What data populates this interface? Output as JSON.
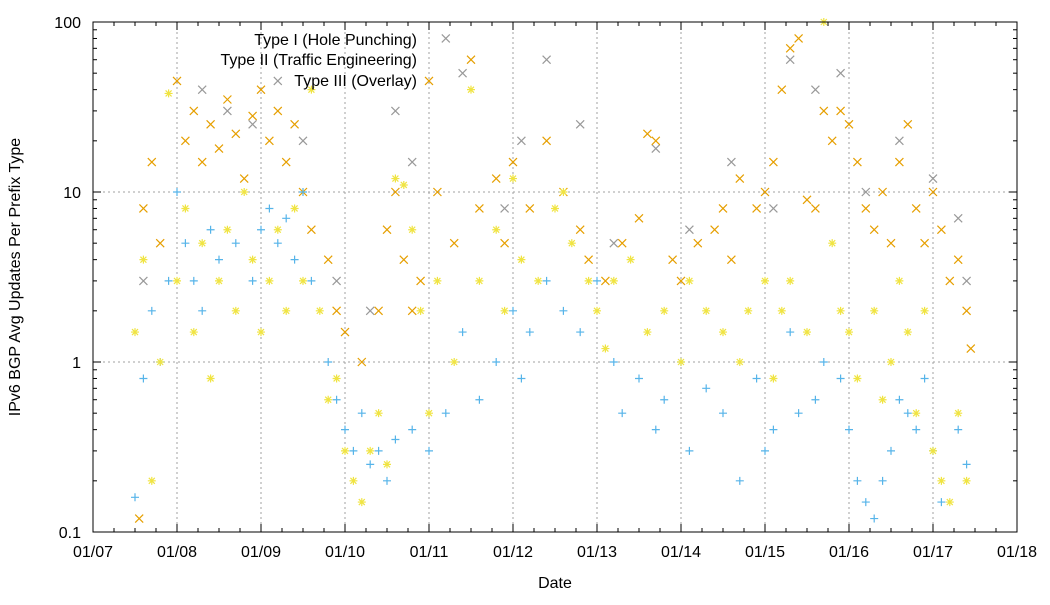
{
  "chart_data": {
    "type": "scatter",
    "title": "",
    "xlabel": "Date",
    "ylabel": "IPv6 BGP Avg Updates Per Prefix Type",
    "x_unit": "day of January (01/DD)",
    "xlim": [
      7,
      18
    ],
    "ylim": [
      0.1,
      100
    ],
    "yscale": "log",
    "grid": true,
    "legend_placement": "top-left",
    "x_tick_labels": [
      "01/07",
      "01/08",
      "01/09",
      "01/10",
      "01/11",
      "01/12",
      "01/13",
      "01/14",
      "01/15",
      "01/16",
      "01/17",
      "01/18"
    ],
    "y_tick_labels": [
      "0.1",
      "1",
      "10",
      "100"
    ],
    "y_ticks": [
      0.1,
      1,
      10,
      100
    ],
    "legend": [
      "Type I (Hole Punching)",
      "Type II (Traffic Engineering)",
      "Type III (Overlay)"
    ],
    "series": [
      {
        "name": "",
        "marker": "x",
        "color": "#999999",
        "points": [
          [
            7.6,
            3
          ],
          [
            8.3,
            40
          ],
          [
            8.6,
            30
          ],
          [
            8.9,
            25
          ],
          [
            9.2,
            45
          ],
          [
            9.5,
            20
          ],
          [
            9.9,
            3
          ],
          [
            10.3,
            2
          ],
          [
            10.6,
            30
          ],
          [
            10.8,
            15
          ],
          [
            11.2,
            80
          ],
          [
            11.4,
            50
          ],
          [
            11.9,
            8
          ],
          [
            12.1,
            20
          ],
          [
            12.4,
            60
          ],
          [
            12.8,
            25
          ],
          [
            13.2,
            5
          ],
          [
            13.7,
            18
          ],
          [
            14.1,
            6
          ],
          [
            14.6,
            15
          ],
          [
            15.1,
            8
          ],
          [
            15.3,
            60
          ],
          [
            15.6,
            40
          ],
          [
            15.9,
            50
          ],
          [
            16.2,
            10
          ],
          [
            16.6,
            20
          ],
          [
            17.0,
            12
          ],
          [
            17.3,
            7
          ],
          [
            17.4,
            3
          ]
        ]
      },
      {
        "name": "Type II (Traffic Engineering)",
        "marker": "x",
        "color": "#e69f00",
        "points": [
          [
            7.55,
            0.12
          ],
          [
            7.6,
            8
          ],
          [
            7.7,
            15
          ],
          [
            7.8,
            5
          ],
          [
            8.0,
            45
          ],
          [
            8.1,
            20
          ],
          [
            8.2,
            30
          ],
          [
            8.3,
            15
          ],
          [
            8.4,
            25
          ],
          [
            8.5,
            18
          ],
          [
            8.6,
            35
          ],
          [
            8.7,
            22
          ],
          [
            8.8,
            12
          ],
          [
            8.9,
            28
          ],
          [
            9.0,
            40
          ],
          [
            9.1,
            20
          ],
          [
            9.2,
            30
          ],
          [
            9.3,
            15
          ],
          [
            9.4,
            25
          ],
          [
            9.5,
            10
          ],
          [
            9.6,
            6
          ],
          [
            9.8,
            4
          ],
          [
            9.9,
            2
          ],
          [
            10.0,
            1.5
          ],
          [
            10.2,
            1
          ],
          [
            10.4,
            2
          ],
          [
            10.5,
            6
          ],
          [
            10.6,
            10
          ],
          [
            10.7,
            4
          ],
          [
            10.8,
            2
          ],
          [
            10.9,
            3
          ],
          [
            11.0,
            45
          ],
          [
            11.1,
            10
          ],
          [
            11.3,
            5
          ],
          [
            11.5,
            60
          ],
          [
            11.6,
            8
          ],
          [
            11.8,
            12
          ],
          [
            11.9,
            5
          ],
          [
            12.0,
            15
          ],
          [
            12.2,
            8
          ],
          [
            12.4,
            20
          ],
          [
            12.6,
            10
          ],
          [
            12.8,
            6
          ],
          [
            12.9,
            4
          ],
          [
            13.1,
            3
          ],
          [
            13.3,
            5
          ],
          [
            13.5,
            7
          ],
          [
            13.6,
            22
          ],
          [
            13.7,
            20
          ],
          [
            13.9,
            4
          ],
          [
            14.0,
            3
          ],
          [
            14.2,
            5
          ],
          [
            14.4,
            6
          ],
          [
            14.5,
            8
          ],
          [
            14.6,
            4
          ],
          [
            14.7,
            12
          ],
          [
            14.9,
            8
          ],
          [
            15.0,
            10
          ],
          [
            15.1,
            15
          ],
          [
            15.2,
            40
          ],
          [
            15.3,
            70
          ],
          [
            15.4,
            80
          ],
          [
            15.5,
            9
          ],
          [
            15.6,
            8
          ],
          [
            15.7,
            30
          ],
          [
            15.8,
            20
          ],
          [
            15.9,
            30
          ],
          [
            16.0,
            25
          ],
          [
            16.1,
            15
          ],
          [
            16.2,
            8
          ],
          [
            16.3,
            6
          ],
          [
            16.4,
            10
          ],
          [
            16.5,
            5
          ],
          [
            16.6,
            15
          ],
          [
            16.7,
            25
          ],
          [
            16.8,
            8
          ],
          [
            16.9,
            5
          ],
          [
            17.0,
            10
          ],
          [
            17.1,
            6
          ],
          [
            17.2,
            3
          ],
          [
            17.3,
            4
          ],
          [
            17.4,
            2
          ],
          [
            17.45,
            1.2
          ]
        ]
      },
      {
        "name": "Type I (Hole Punching)",
        "marker": "+",
        "color": "#56b4e9",
        "points": [
          [
            7.5,
            0.16
          ],
          [
            7.6,
            0.8
          ],
          [
            7.7,
            2
          ],
          [
            7.8,
            1
          ],
          [
            7.9,
            3
          ],
          [
            8.0,
            10
          ],
          [
            8.1,
            5
          ],
          [
            8.2,
            3
          ],
          [
            8.3,
            2
          ],
          [
            8.4,
            6
          ],
          [
            8.5,
            4
          ],
          [
            8.7,
            5
          ],
          [
            8.9,
            3
          ],
          [
            9.0,
            6
          ],
          [
            9.1,
            8
          ],
          [
            9.2,
            5
          ],
          [
            9.3,
            7
          ],
          [
            9.4,
            4
          ],
          [
            9.5,
            10
          ],
          [
            9.6,
            3
          ],
          [
            9.8,
            1
          ],
          [
            9.9,
            0.6
          ],
          [
            10.0,
            0.4
          ],
          [
            10.1,
            0.3
          ],
          [
            10.2,
            0.5
          ],
          [
            10.3,
            0.25
          ],
          [
            10.4,
            0.3
          ],
          [
            10.5,
            0.2
          ],
          [
            10.6,
            0.35
          ],
          [
            10.8,
            0.4
          ],
          [
            11.0,
            0.3
          ],
          [
            11.2,
            0.5
          ],
          [
            11.4,
            1.5
          ],
          [
            11.6,
            0.6
          ],
          [
            11.8,
            1
          ],
          [
            12.0,
            2
          ],
          [
            12.1,
            0.8
          ],
          [
            12.2,
            1.5
          ],
          [
            12.4,
            3
          ],
          [
            12.6,
            2
          ],
          [
            12.8,
            1.5
          ],
          [
            13.0,
            3
          ],
          [
            13.2,
            1
          ],
          [
            13.3,
            0.5
          ],
          [
            13.5,
            0.8
          ],
          [
            13.7,
            0.4
          ],
          [
            13.8,
            0.6
          ],
          [
            14.0,
            1
          ],
          [
            14.1,
            0.3
          ],
          [
            14.3,
            0.7
          ],
          [
            14.5,
            0.5
          ],
          [
            14.7,
            0.2
          ],
          [
            14.9,
            0.8
          ],
          [
            15.0,
            0.3
          ],
          [
            15.1,
            0.4
          ],
          [
            15.3,
            1.5
          ],
          [
            15.4,
            0.5
          ],
          [
            15.6,
            0.6
          ],
          [
            15.7,
            1
          ],
          [
            15.9,
            0.8
          ],
          [
            16.0,
            0.4
          ],
          [
            16.1,
            0.2
          ],
          [
            16.2,
            0.15
          ],
          [
            16.3,
            0.12
          ],
          [
            16.4,
            0.2
          ],
          [
            16.5,
            0.3
          ],
          [
            16.6,
            0.6
          ],
          [
            16.7,
            0.5
          ],
          [
            16.8,
            0.4
          ],
          [
            16.9,
            0.8
          ],
          [
            17.0,
            0.3
          ],
          [
            17.1,
            0.15
          ],
          [
            17.3,
            0.4
          ],
          [
            17.4,
            0.25
          ]
        ]
      },
      {
        "name": "Type III (Overlay)",
        "marker": "*",
        "color": "#f0e442",
        "points": [
          [
            7.5,
            1.5
          ],
          [
            7.6,
            4
          ],
          [
            7.7,
            0.2
          ],
          [
            7.8,
            1
          ],
          [
            7.9,
            38
          ],
          [
            8.0,
            3
          ],
          [
            8.1,
            8
          ],
          [
            8.2,
            1.5
          ],
          [
            8.3,
            5
          ],
          [
            8.4,
            0.8
          ],
          [
            8.5,
            3
          ],
          [
            8.6,
            6
          ],
          [
            8.7,
            2
          ],
          [
            8.8,
            10
          ],
          [
            8.9,
            4
          ],
          [
            9.0,
            1.5
          ],
          [
            9.1,
            3
          ],
          [
            9.2,
            6
          ],
          [
            9.3,
            2
          ],
          [
            9.4,
            8
          ],
          [
            9.5,
            3
          ],
          [
            9.6,
            40
          ],
          [
            9.7,
            2
          ],
          [
            9.8,
            0.6
          ],
          [
            9.9,
            0.8
          ],
          [
            10.0,
            0.3
          ],
          [
            10.1,
            0.2
          ],
          [
            10.2,
            0.15
          ],
          [
            10.3,
            0.3
          ],
          [
            10.4,
            0.5
          ],
          [
            10.5,
            0.25
          ],
          [
            10.6,
            12
          ],
          [
            10.7,
            11
          ],
          [
            10.8,
            6
          ],
          [
            10.9,
            2
          ],
          [
            11.0,
            0.5
          ],
          [
            11.1,
            3
          ],
          [
            11.3,
            1
          ],
          [
            11.5,
            40
          ],
          [
            11.6,
            3
          ],
          [
            11.8,
            6
          ],
          [
            11.9,
            2
          ],
          [
            12.0,
            12
          ],
          [
            12.1,
            4
          ],
          [
            12.3,
            3
          ],
          [
            12.5,
            8
          ],
          [
            12.6,
            10
          ],
          [
            12.7,
            5
          ],
          [
            12.9,
            3
          ],
          [
            13.0,
            2
          ],
          [
            13.1,
            1.2
          ],
          [
            13.2,
            3
          ],
          [
            13.4,
            4
          ],
          [
            13.6,
            1.5
          ],
          [
            13.8,
            2
          ],
          [
            14.0,
            1
          ],
          [
            14.1,
            3
          ],
          [
            14.3,
            2
          ],
          [
            14.5,
            1.5
          ],
          [
            14.7,
            1
          ],
          [
            14.8,
            2
          ],
          [
            15.0,
            3
          ],
          [
            15.1,
            0.8
          ],
          [
            15.2,
            2
          ],
          [
            15.3,
            3
          ],
          [
            15.5,
            1.5
          ],
          [
            15.7,
            100
          ],
          [
            15.8,
            5
          ],
          [
            15.9,
            2
          ],
          [
            16.0,
            1.5
          ],
          [
            16.1,
            0.8
          ],
          [
            16.3,
            2
          ],
          [
            16.4,
            0.6
          ],
          [
            16.5,
            1
          ],
          [
            16.6,
            3
          ],
          [
            16.7,
            1.5
          ],
          [
            16.8,
            0.5
          ],
          [
            16.9,
            2
          ],
          [
            17.0,
            0.3
          ],
          [
            17.1,
            0.2
          ],
          [
            17.2,
            0.15
          ],
          [
            17.3,
            0.5
          ],
          [
            17.4,
            0.2
          ]
        ]
      }
    ]
  }
}
